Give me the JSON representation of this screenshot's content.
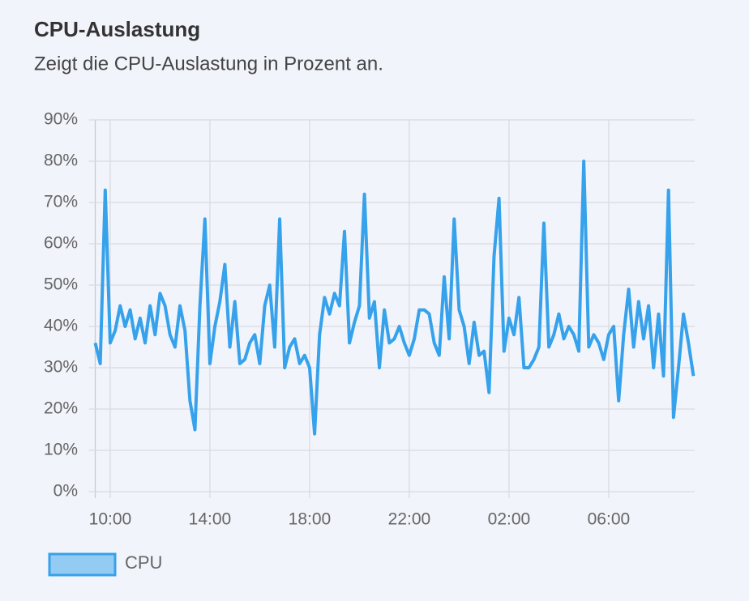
{
  "chart_data": {
    "type": "line",
    "title": "CPU-Auslastung",
    "subtitle": "Zeigt die CPU-Auslastung in Prozent an.",
    "x": [
      9.4,
      9.6,
      9.8,
      10.0,
      10.2,
      10.4,
      10.6,
      10.8,
      11.0,
      11.2,
      11.4,
      11.6,
      11.8,
      12.0,
      12.2,
      12.4,
      12.6,
      12.8,
      13.0,
      13.2,
      13.4,
      13.6,
      13.8,
      14.0,
      14.2,
      14.4,
      14.6,
      14.8,
      15.0,
      15.2,
      15.4,
      15.6,
      15.8,
      16.0,
      16.2,
      16.4,
      16.6,
      16.8,
      17.0,
      17.2,
      17.4,
      17.6,
      17.8,
      18.0,
      18.2,
      18.4,
      18.6,
      18.8,
      19.0,
      19.2,
      19.4,
      19.6,
      19.8,
      20.0,
      20.2,
      20.4,
      20.6,
      20.8,
      21.0,
      21.2,
      21.4,
      21.6,
      21.8,
      22.0,
      22.2,
      22.4,
      22.6,
      22.8,
      23.0,
      23.2,
      23.4,
      23.6,
      23.8,
      24.0,
      24.2,
      24.4,
      24.6,
      24.8,
      25.0,
      25.2,
      25.4,
      25.6,
      25.8,
      26.0,
      26.2,
      26.4,
      26.6,
      26.8,
      27.0,
      27.2,
      27.4,
      27.6,
      27.8,
      28.0,
      28.2,
      28.4,
      28.6,
      28.8,
      29.0,
      29.2,
      29.4,
      29.6,
      29.8,
      30.0,
      30.2,
      30.4,
      30.6,
      30.8,
      31.0,
      31.2,
      31.4,
      31.6,
      31.8,
      32.0,
      32.2,
      32.4,
      32.6,
      32.8,
      33.0,
      33.2,
      33.4
    ],
    "series": [
      {
        "name": "CPU",
        "color": "#36a2eb",
        "values": [
          36,
          31,
          73,
          36,
          39,
          45,
          40,
          44,
          37,
          42,
          36,
          45,
          38,
          48,
          45,
          38,
          35,
          45,
          39,
          22,
          15,
          45,
          66,
          31,
          40,
          46,
          55,
          35,
          46,
          31,
          32,
          36,
          38,
          31,
          45,
          50,
          35,
          66,
          30,
          35,
          37,
          31,
          33,
          30,
          14,
          38,
          47,
          43,
          48,
          45,
          63,
          36,
          41,
          45,
          72,
          42,
          46,
          30,
          44,
          36,
          37,
          40,
          36,
          33,
          37,
          44,
          44,
          43,
          36,
          33,
          52,
          37,
          66,
          44,
          40,
          31,
          41,
          33,
          34,
          24,
          57,
          71,
          34,
          42,
          38,
          47,
          30,
          30,
          32,
          35,
          65,
          35,
          38,
          43,
          37,
          40,
          38,
          34,
          80,
          35,
          38,
          36,
          32,
          38,
          40,
          22,
          38,
          49,
          35,
          46,
          37,
          45,
          30,
          43,
          28,
          73,
          18,
          30,
          43,
          36,
          28
        ]
      }
    ],
    "xlim": [
      9.4,
      33.45
    ],
    "xticks": [
      {
        "value": 10,
        "label": "10:00"
      },
      {
        "value": 14,
        "label": "14:00"
      },
      {
        "value": 18,
        "label": "18:00"
      },
      {
        "value": 22,
        "label": "22:00"
      },
      {
        "value": 26,
        "label": "02:00"
      },
      {
        "value": 30,
        "label": "06:00"
      }
    ],
    "ylim": [
      0,
      90
    ],
    "yticks": [
      {
        "value": 0,
        "label": "0%"
      },
      {
        "value": 10,
        "label": "10%"
      },
      {
        "value": 20,
        "label": "20%"
      },
      {
        "value": 30,
        "label": "30%"
      },
      {
        "value": 40,
        "label": "40%"
      },
      {
        "value": 50,
        "label": "50%"
      },
      {
        "value": 60,
        "label": "60%"
      },
      {
        "value": 70,
        "label": "70%"
      },
      {
        "value": 80,
        "label": "80%"
      },
      {
        "value": 90,
        "label": "90%"
      }
    ],
    "grid": true
  }
}
